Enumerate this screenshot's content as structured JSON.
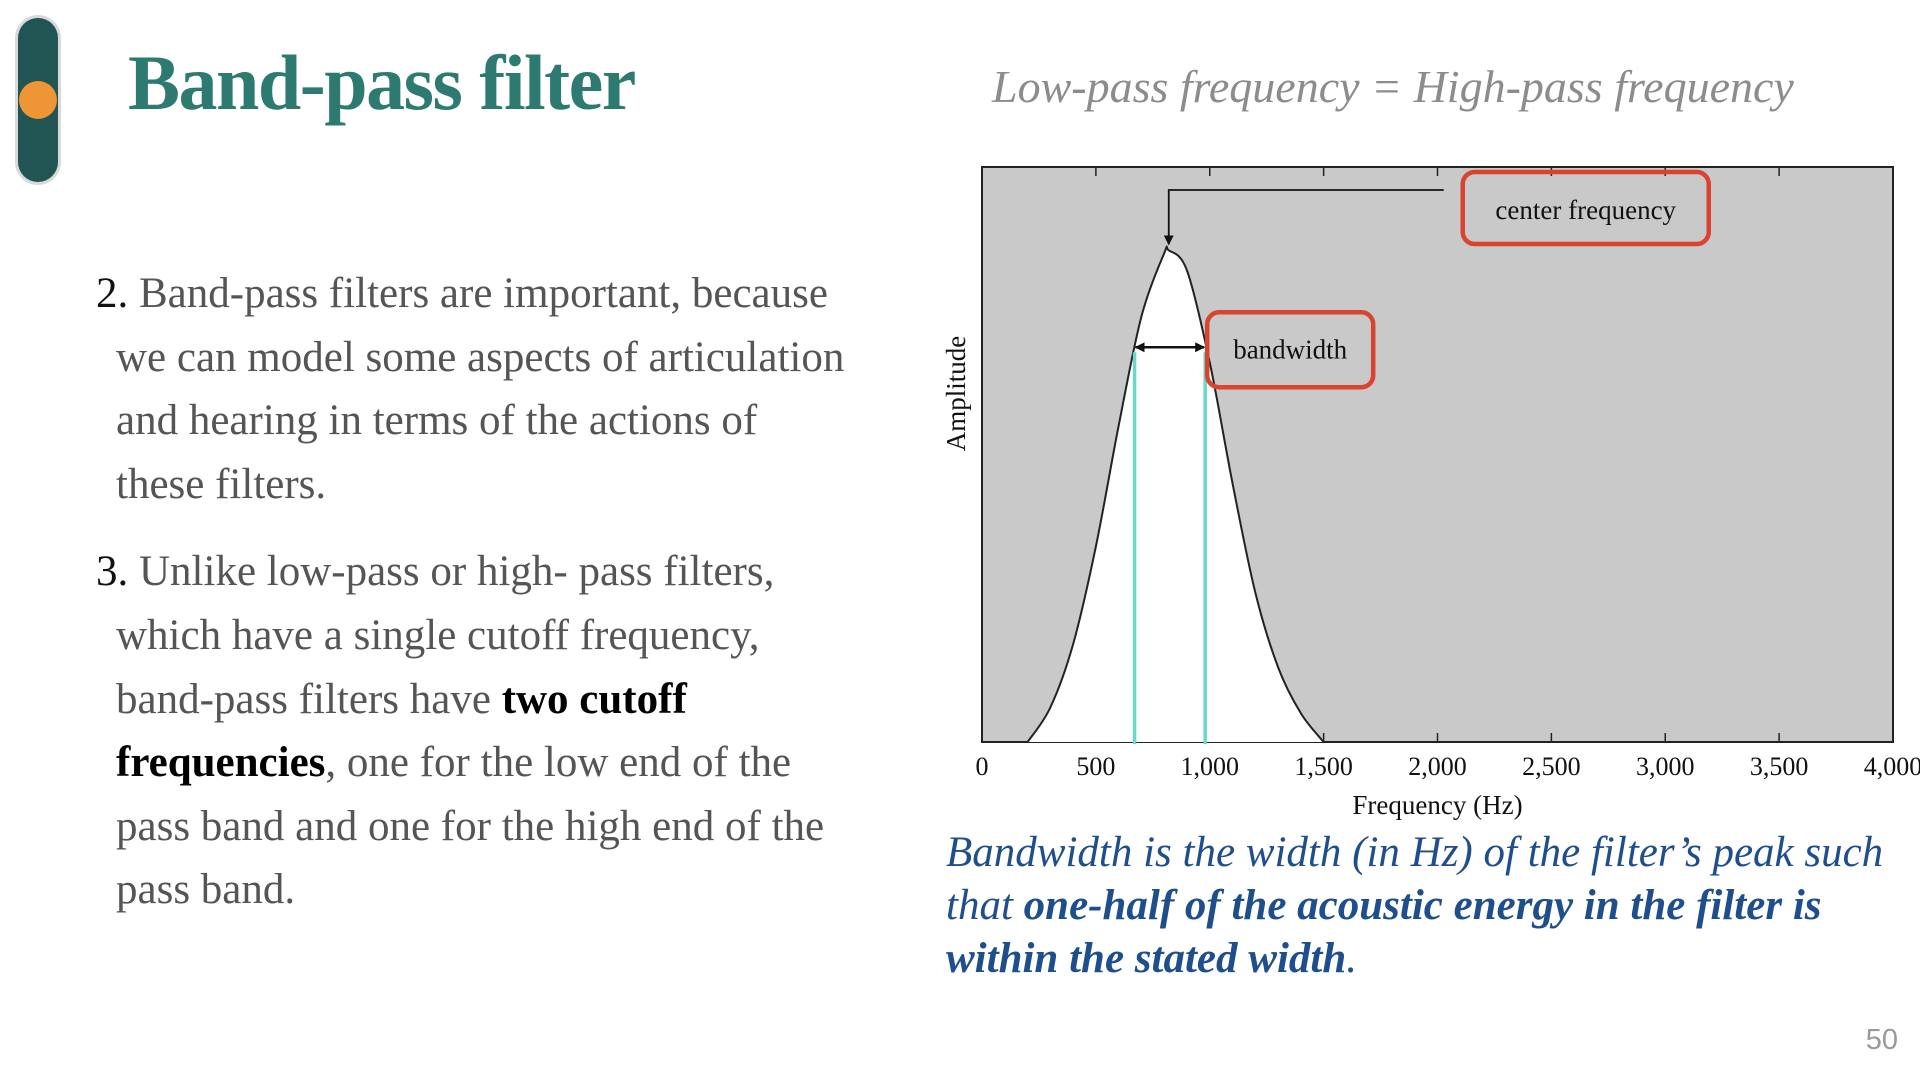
{
  "slide": {
    "title": "Band-pass filter",
    "subtitle": "Low-pass frequency = High-pass frequency",
    "page_number": "50"
  },
  "body": {
    "items": [
      {
        "num": "2.",
        "text": " Band-pass filters are important, because we can model some aspects of articulation and hearing in terms of the actions of these filters."
      },
      {
        "num": "3.",
        "text_before": " Unlike low-pass or high- pass filters, which have a single cutoff frequency, band-pass filters have ",
        "bold": "two cutoff frequencies",
        "text_after": ", one for the low end of the pass band and one for the high end of the pass band."
      }
    ]
  },
  "caption": {
    "text_before": "Bandwidth is the width (in Hz) of the filter’s peak such that ",
    "bold": "one-half of the acoustic energy in the filter is within the stated width",
    "text_after": "."
  },
  "chart_data": {
    "type": "area",
    "xlabel": "Frequency (Hz)",
    "ylabel": "Amplitude",
    "xlim": [
      0,
      4000
    ],
    "ylim": [
      0,
      1
    ],
    "x_ticks": [
      0,
      500,
      1000,
      1500,
      2000,
      2500,
      3000,
      3500,
      4000
    ],
    "x_tick_labels": [
      "0",
      "500",
      "1,000",
      "1,500",
      "2,000",
      "2,500",
      "3,000",
      "3,500",
      "4,000"
    ],
    "center_frequency": 820,
    "bandwidth_low": 670,
    "bandwidth_high": 980,
    "peak_amplitude": 0.855,
    "x": [
      200,
      300,
      400,
      500,
      600,
      700,
      800,
      820,
      900,
      1000,
      1100,
      1200,
      1300,
      1400,
      1500
    ],
    "y": [
      0.0,
      0.06,
      0.17,
      0.34,
      0.55,
      0.74,
      0.85,
      0.855,
      0.82,
      0.66,
      0.45,
      0.26,
      0.13,
      0.05,
      0.0
    ],
    "annotations": [
      "center frequency",
      "bandwidth"
    ],
    "grid": false,
    "colors": {
      "plot_background": "#c9c9c9",
      "curve_fill": "#ffffff",
      "curve_stroke": "#222222",
      "cutoff_lines": "#6ad8c8",
      "highlight_boxes": "#d9432f"
    }
  }
}
